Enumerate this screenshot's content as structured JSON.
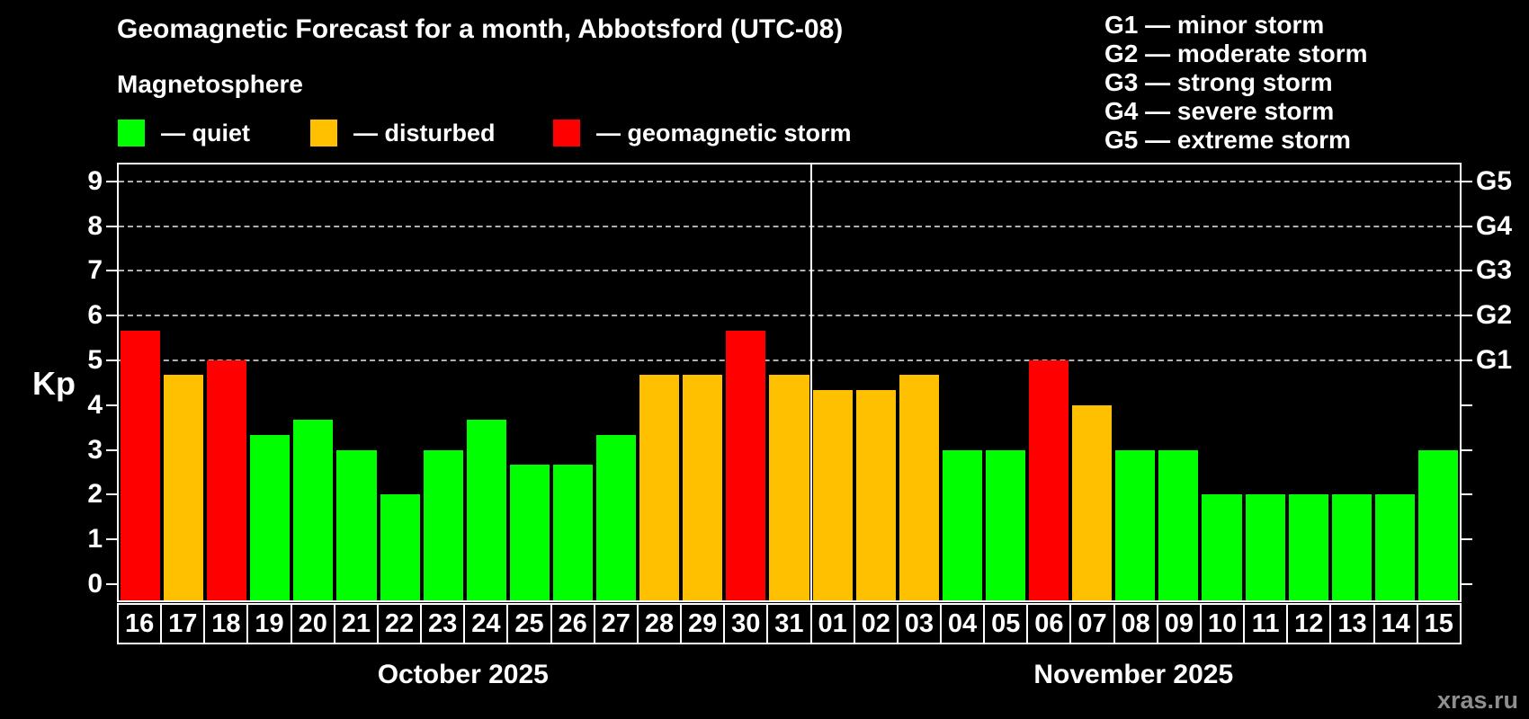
{
  "title": "Geomagnetic Forecast for a month, Abbotsford (UTC-08)",
  "subtitle": "Magnetosphere",
  "legend": {
    "items": [
      {
        "key": "quiet",
        "label": "— quiet"
      },
      {
        "key": "disturbed",
        "label": "— disturbed"
      },
      {
        "key": "storm",
        "label": "— geomagnetic storm"
      }
    ]
  },
  "storm_scale_legend": {
    "items": [
      {
        "code": "G1",
        "label": "G1 — minor storm"
      },
      {
        "code": "G2",
        "label": "G2 — moderate storm"
      },
      {
        "code": "G3",
        "label": "G3 — strong storm"
      },
      {
        "code": "G4",
        "label": "G4 — severe storm"
      },
      {
        "code": "G5",
        "label": "G5 — extreme storm"
      }
    ]
  },
  "y_axis": {
    "label": "Kp",
    "ticks": [
      0,
      1,
      2,
      3,
      4,
      5,
      6,
      7,
      8,
      9
    ]
  },
  "right_axis": {
    "g_ticks": [
      {
        "value": 5,
        "label": "G1"
      },
      {
        "value": 6,
        "label": "G2"
      },
      {
        "value": 7,
        "label": "G3"
      },
      {
        "value": 8,
        "label": "G4"
      },
      {
        "value": 9,
        "label": "G5"
      }
    ]
  },
  "watermark": "xras.ru",
  "colors": {
    "background": "#000000",
    "text": "#ffffff",
    "axis": "#ffffff",
    "grid": "#b0b0b0",
    "quiet": "#00ff00",
    "disturbed": "#ffc000",
    "storm": "#ff0000",
    "watermark": "#8f8f8f"
  },
  "chart_data": {
    "type": "bar",
    "title": "Geomagnetic Forecast for a month, Abbotsford (UTC-08)",
    "xlabel": "",
    "ylabel": "Kp",
    "ylim": [
      0,
      9.4
    ],
    "grid": true,
    "grid_levels": [
      5,
      6,
      7,
      8,
      9
    ],
    "legend_position": "top",
    "months": [
      {
        "label": "October 2025",
        "start_index": 0,
        "count": 16
      },
      {
        "label": "November 2025",
        "start_index": 16,
        "count": 15
      }
    ],
    "categories": [
      "16",
      "17",
      "18",
      "19",
      "20",
      "21",
      "22",
      "23",
      "24",
      "25",
      "26",
      "27",
      "28",
      "29",
      "30",
      "31",
      "01",
      "02",
      "03",
      "04",
      "05",
      "06",
      "07",
      "08",
      "09",
      "10",
      "11",
      "12",
      "13",
      "14",
      "15"
    ],
    "values": [
      5.67,
      4.67,
      5,
      3.33,
      3.67,
      3,
      2,
      3,
      3.67,
      2.67,
      2.67,
      3.33,
      4.67,
      4.67,
      5.67,
      4.67,
      4.33,
      4.33,
      4.67,
      3,
      3,
      5,
      4,
      3,
      3,
      2,
      2,
      2,
      2,
      2,
      3
    ],
    "statuses": [
      "storm",
      "disturbed",
      "storm",
      "quiet",
      "quiet",
      "quiet",
      "quiet",
      "quiet",
      "quiet",
      "quiet",
      "quiet",
      "quiet",
      "disturbed",
      "disturbed",
      "storm",
      "disturbed",
      "disturbed",
      "disturbed",
      "disturbed",
      "quiet",
      "quiet",
      "storm",
      "disturbed",
      "quiet",
      "quiet",
      "quiet",
      "quiet",
      "quiet",
      "quiet",
      "quiet",
      "quiet"
    ]
  }
}
